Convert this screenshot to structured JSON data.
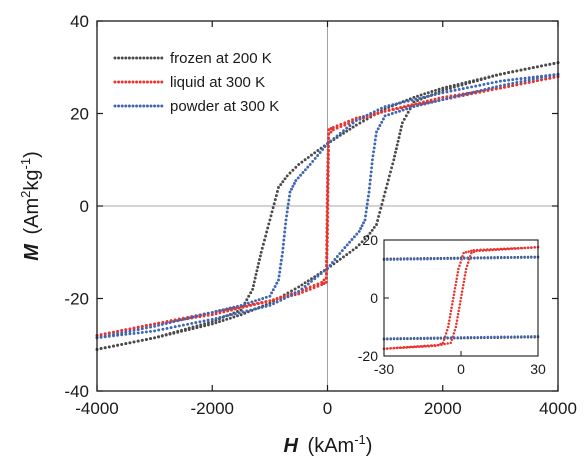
{
  "chart_data": [
    {
      "type": "scatter",
      "xlabel_symbol": "H",
      "xlabel_unit": "(kAm",
      "xlabel_exp": "-1",
      "xlabel_close": ")",
      "ylabel_symbol": "M",
      "ylabel_unit": "(Am",
      "ylabel_exp1": "2",
      "ylabel_mid": "kg",
      "ylabel_exp2": "-1",
      "ylabel_close": ")",
      "xlim": [
        -4000,
        4000
      ],
      "ylim": [
        -40,
        40
      ],
      "xticks": [
        -4000,
        -2000,
        0,
        2000,
        4000
      ],
      "yticks": [
        -40,
        -20,
        0,
        20,
        40
      ],
      "xtick_labels": [
        "-4000",
        "-2000",
        "0",
        "2000",
        "4000"
      ],
      "ytick_labels": [
        "-40",
        "-20",
        "0",
        "20",
        "40"
      ],
      "legend_position": "top-left",
      "zero_lines": true,
      "series": [
        {
          "name": "frozen at 200 K",
          "color": "#4a4a4a",
          "upper": [
            [
              -4000,
              -31
            ],
            [
              -3000,
              -28.5
            ],
            [
              -2000,
              -25
            ],
            [
              -1500,
              -22.5
            ],
            [
              -1300,
              -18
            ],
            [
              -1150,
              -10
            ],
            [
              -1000,
              -3
            ],
            [
              -850,
              4
            ],
            [
              -700,
              6.5
            ],
            [
              -500,
              9
            ],
            [
              0,
              13.5
            ],
            [
              500,
              17.5
            ],
            [
              1000,
              21
            ],
            [
              1500,
              23.5
            ],
            [
              2000,
              25.5
            ],
            [
              3000,
              28.5
            ],
            [
              4000,
              31
            ]
          ],
          "lower": [
            [
              4000,
              31
            ],
            [
              3000,
              28.5
            ],
            [
              2000,
              25
            ],
            [
              1500,
              22.5
            ],
            [
              1300,
              18
            ],
            [
              1150,
              10
            ],
            [
              1000,
              3
            ],
            [
              850,
              -4
            ],
            [
              700,
              -6.5
            ],
            [
              500,
              -9
            ],
            [
              0,
              -13.5
            ],
            [
              -500,
              -17.5
            ],
            [
              -1000,
              -21
            ],
            [
              -1500,
              -23.5
            ],
            [
              -2000,
              -25.5
            ],
            [
              -3000,
              -28.5
            ],
            [
              -4000,
              -31
            ]
          ]
        },
        {
          "name": "liquid at 300 K",
          "color": "#e8332f",
          "upper": [
            [
              -4000,
              -28
            ],
            [
              -3000,
              -25.5
            ],
            [
              -2000,
              -23
            ],
            [
              -1000,
              -20.5
            ],
            [
              -500,
              -19
            ],
            [
              -100,
              -17
            ],
            [
              -20,
              -16.5
            ],
            [
              0,
              -6
            ],
            [
              20,
              15.5
            ],
            [
              100,
              16.5
            ],
            [
              500,
              18.5
            ],
            [
              1000,
              20.5
            ],
            [
              2000,
              23.5
            ],
            [
              3000,
              25.5
            ],
            [
              4000,
              28
            ]
          ],
          "lower": [
            [
              4000,
              28
            ],
            [
              3000,
              25.5
            ],
            [
              2000,
              23
            ],
            [
              1000,
              20.5
            ],
            [
              500,
              19
            ],
            [
              100,
              17
            ],
            [
              20,
              16.5
            ],
            [
              0,
              6
            ],
            [
              -20,
              -15.5
            ],
            [
              -100,
              -16.5
            ],
            [
              -500,
              -18.5
            ],
            [
              -1000,
              -20.5
            ],
            [
              -2000,
              -23.5
            ],
            [
              -3000,
              -25.5
            ],
            [
              -4000,
              -28
            ]
          ]
        },
        {
          "name": "powder at 300 K",
          "color": "#3f66b0",
          "upper": [
            [
              -4000,
              -28.5
            ],
            [
              -3000,
              -26
            ],
            [
              -2000,
              -23
            ],
            [
              -1500,
              -21.5
            ],
            [
              -1000,
              -19.5
            ],
            [
              -850,
              -16
            ],
            [
              -780,
              -10
            ],
            [
              -720,
              -3
            ],
            [
              -650,
              3
            ],
            [
              -550,
              5.5
            ],
            [
              -300,
              9
            ],
            [
              0,
              13.5
            ],
            [
              500,
              18.5
            ],
            [
              1000,
              21.5
            ],
            [
              2000,
              24.5
            ],
            [
              3000,
              27
            ],
            [
              4000,
              28.5
            ]
          ],
          "lower": [
            [
              4000,
              28.5
            ],
            [
              3000,
              26
            ],
            [
              2000,
              23
            ],
            [
              1500,
              21.5
            ],
            [
              1000,
              19.5
            ],
            [
              850,
              16
            ],
            [
              780,
              10
            ],
            [
              720,
              3
            ],
            [
              650,
              -3
            ],
            [
              550,
              -5.5
            ],
            [
              300,
              -9
            ],
            [
              0,
              -13.5
            ],
            [
              -500,
              -18.5
            ],
            [
              -1000,
              -21.5
            ],
            [
              -2000,
              -24.5
            ],
            [
              -3000,
              -27
            ],
            [
              -4000,
              -28.5
            ]
          ]
        }
      ]
    },
    {
      "type": "scatter",
      "role": "inset",
      "xlim": [
        -30,
        30
      ],
      "ylim": [
        -20,
        20
      ],
      "xticks": [
        -30,
        0,
        30
      ],
      "yticks": [
        -20,
        0,
        20
      ],
      "xtick_labels": [
        "-30",
        "0",
        "30"
      ],
      "ytick_labels": [
        "-20",
        "0",
        "20"
      ],
      "series": [
        {
          "name": "frozen at 200 K",
          "color": "#4a4a4a",
          "upper": [
            [
              -30,
              13.5
            ],
            [
              30,
              14.2
            ]
          ],
          "lower": [
            [
              30,
              -13.5
            ],
            [
              -30,
              -14.2
            ]
          ]
        },
        {
          "name": "liquid at 300 K",
          "color": "#e8332f",
          "upper": [
            [
              -30,
              -17.5
            ],
            [
              -10,
              -16.5
            ],
            [
              -4,
              -15.5
            ],
            [
              -2,
              -10
            ],
            [
              0,
              0
            ],
            [
              2,
              10
            ],
            [
              4,
              15.5
            ],
            [
              6,
              16.2
            ],
            [
              30,
              17.5
            ]
          ],
          "lower": [
            [
              30,
              17.5
            ],
            [
              5,
              16.5
            ],
            [
              1,
              15.5
            ],
            [
              -1,
              10
            ],
            [
              -3,
              0
            ],
            [
              -5,
              -10
            ],
            [
              -7,
              -15.5
            ],
            [
              -9,
              -16.2
            ],
            [
              -30,
              -17.5
            ]
          ]
        },
        {
          "name": "powder at 300 K",
          "color": "#3f66b0",
          "upper": [
            [
              -30,
              13.2
            ],
            [
              30,
              14.0
            ]
          ],
          "lower": [
            [
              30,
              -13.2
            ],
            [
              -30,
              -14.0
            ]
          ]
        }
      ]
    }
  ]
}
